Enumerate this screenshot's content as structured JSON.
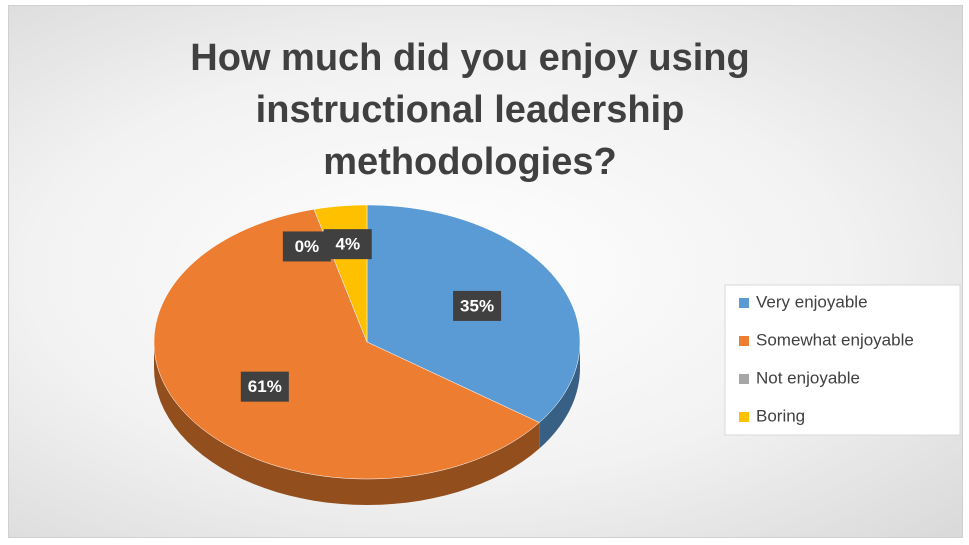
{
  "chart_data": {
    "type": "pie",
    "title": "How much did you enjoy using instructional leadership methodologies?",
    "categories": [
      "Very enjoyable",
      "Somewhat enjoyable",
      "Not enjoyable",
      "Boring"
    ],
    "values": [
      35,
      61,
      0,
      4
    ],
    "value_labels": [
      "35%",
      "61%",
      "0%",
      "4%"
    ],
    "colors": [
      "#5b9bd5",
      "#ed7d31",
      "#a5a5a5",
      "#ffc000"
    ],
    "legend": "right"
  }
}
